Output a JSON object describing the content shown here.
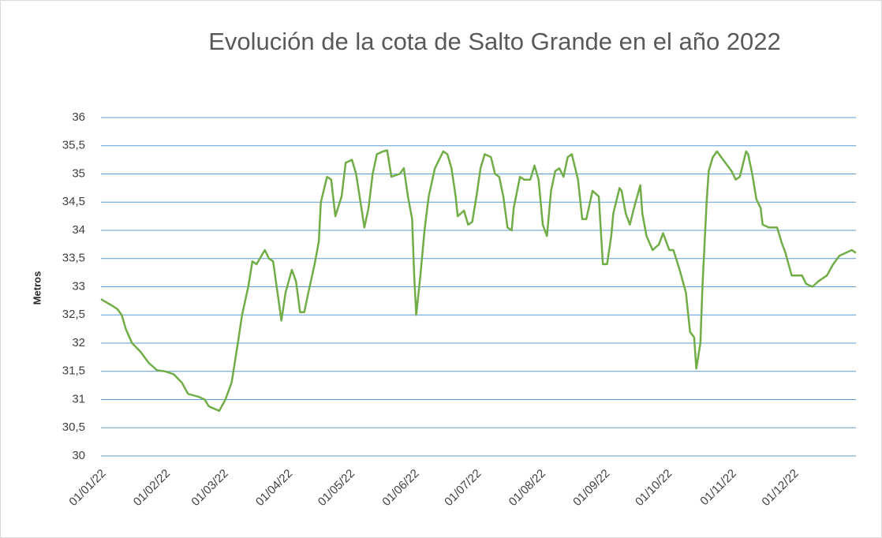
{
  "chart_data": {
    "type": "line",
    "title": "Evolución de la cota de Salto Grande en el año 2022",
    "y_label": "Metros",
    "xlim": [
      "01/01/22",
      "31/12/22"
    ],
    "xticks": [
      "01/01/22",
      "01/02/22",
      "01/03/22",
      "01/04/22",
      "01/05/22",
      "01/06/22",
      "01/07/22",
      "01/08/22",
      "01/09/22",
      "01/10/22",
      "01/11/22",
      "01/12/22"
    ],
    "ylim": [
      30,
      36
    ],
    "yticks": [
      30,
      {
        "value": 30.5,
        "label": "30,5"
      },
      31,
      {
        "value": 31.5,
        "label": "31,5"
      },
      32,
      {
        "value": 32.5,
        "label": "32,5"
      },
      33,
      {
        "value": 33.5,
        "label": "33,5"
      },
      34,
      {
        "value": 34.5,
        "label": "34,5"
      },
      35,
      {
        "value": 35.5,
        "label": "35,5"
      },
      36
    ],
    "grid": true,
    "x": [
      "01/01/22",
      "07/01/22",
      "09/01/22",
      "11/01/22",
      "13/01/22",
      "16/01/22",
      "20/01/22",
      "24/01/22",
      "28/01/22",
      "01/02/22",
      "05/02/22",
      "09/02/22",
      "12/02/22",
      "17/02/22",
      "20/02/22",
      "22/02/22",
      "27/02/22",
      "02/03/22",
      "05/03/22",
      "08/03/22",
      "10/03/22",
      "13/03/22",
      "15/03/22",
      "17/03/22",
      "21/03/22",
      "23/03/22",
      "25/03/22",
      "29/03/22",
      "31/03/22",
      "03/04/22",
      "05/04/22",
      "07/04/22",
      "09/04/22",
      "11/04/22",
      "14/04/22",
      "16/04/22",
      "17/04/22",
      "20/04/22",
      "22/04/22",
      "24/04/22",
      "27/04/22",
      "29/04/22",
      "02/05/22",
      "04/05/22",
      "08/05/22",
      "10/05/22",
      "12/05/22",
      "14/05/22",
      "17/05/22",
      "19/05/22",
      "21/05/22",
      "25/05/22",
      "27/05/22",
      "29/05/22",
      "31/05/22",
      "01/06/22",
      "02/06/22",
      "04/06/22",
      "06/06/22",
      "08/06/22",
      "11/06/22",
      "15/06/22",
      "17/06/22",
      "19/06/22",
      "21/06/22",
      "22/06/22",
      "25/06/22",
      "27/06/22",
      "29/06/22",
      "01/07/22",
      "03/07/22",
      "05/07/22",
      "08/07/22",
      "10/07/22",
      "12/07/22",
      "14/07/22",
      "16/07/22",
      "18/07/22",
      "19/07/22",
      "22/07/22",
      "24/07/22",
      "27/07/22",
      "29/07/22",
      "31/07/22",
      "02/08/22",
      "04/08/22",
      "06/08/22",
      "08/08/22",
      "10/08/22",
      "12/08/22",
      "14/08/22",
      "16/08/22",
      "19/08/22",
      "21/08/22",
      "23/08/22",
      "26/08/22",
      "29/08/22",
      "31/08/22",
      "02/09/22",
      "04/09/22",
      "05/09/22",
      "08/09/22",
      "09/09/22",
      "11/09/22",
      "13/09/22",
      "15/09/22",
      "18/09/22",
      "19/09/22",
      "21/09/22",
      "24/09/22",
      "27/09/22",
      "29/09/22",
      "02/10/22",
      "04/10/22",
      "07/10/22",
      "10/10/22",
      "12/10/22",
      "14/10/22",
      "15/10/22",
      "17/10/22",
      "18/10/22",
      "20/10/22",
      "21/10/22",
      "23/10/22",
      "25/10/22",
      "27/10/22",
      "30/10/22",
      "01/11/22",
      "03/11/22",
      "05/11/22",
      "08/11/22",
      "09/11/22",
      "11/11/22",
      "13/11/22",
      "15/11/22",
      "16/11/22",
      "19/11/22",
      "23/11/22",
      "25/11/22",
      "27/11/22",
      "30/11/22",
      "03/12/22",
      "05/12/22",
      "07/12/22",
      "10/12/22",
      "13/12/22",
      "17/12/22",
      "20/12/22",
      "23/12/22",
      "26/12/22",
      "29/12/22",
      "31/12/22"
    ],
    "series": [
      {
        "color": "#70ad47",
        "values": [
          32.78,
          32.65,
          32.6,
          32.5,
          32.25,
          32.0,
          31.85,
          31.65,
          31.52,
          31.5,
          31.45,
          31.3,
          31.1,
          31.05,
          31.0,
          30.88,
          30.8,
          31.0,
          31.3,
          32.0,
          32.5,
          33.0,
          33.45,
          33.4,
          33.65,
          33.5,
          33.45,
          32.4,
          32.9,
          33.3,
          33.1,
          32.55,
          32.55,
          32.9,
          33.4,
          33.8,
          34.5,
          34.95,
          34.9,
          34.25,
          34.6,
          35.2,
          35.25,
          35.0,
          34.05,
          34.4,
          35.0,
          35.35,
          35.4,
          35.42,
          34.95,
          35.0,
          35.1,
          34.6,
          34.2,
          33.2,
          32.5,
          33.2,
          34.0,
          34.6,
          35.1,
          35.4,
          35.35,
          35.1,
          34.6,
          34.25,
          34.35,
          34.1,
          34.15,
          34.6,
          35.1,
          35.35,
          35.3,
          35.0,
          34.95,
          34.6,
          34.05,
          34.0,
          34.4,
          34.95,
          34.9,
          34.9,
          35.15,
          34.9,
          34.1,
          33.9,
          34.7,
          35.05,
          35.1,
          34.95,
          35.3,
          35.35,
          34.9,
          34.2,
          34.2,
          34.7,
          34.6,
          33.4,
          33.4,
          33.9,
          34.3,
          34.75,
          34.7,
          34.3,
          34.1,
          34.4,
          34.8,
          34.3,
          33.9,
          33.65,
          33.75,
          33.95,
          33.65,
          33.65,
          33.3,
          32.9,
          32.2,
          32.1,
          31.55,
          32.0,
          33.0,
          34.5,
          35.05,
          35.3,
          35.4,
          35.3,
          35.15,
          35.05,
          34.9,
          34.95,
          35.4,
          35.35,
          35.0,
          34.55,
          34.4,
          34.1,
          34.05,
          34.05,
          33.8,
          33.6,
          33.2,
          33.2,
          33.2,
          33.05,
          33.0,
          33.1,
          33.2,
          33.4,
          33.55,
          33.6,
          33.65,
          33.6
        ]
      }
    ]
  }
}
